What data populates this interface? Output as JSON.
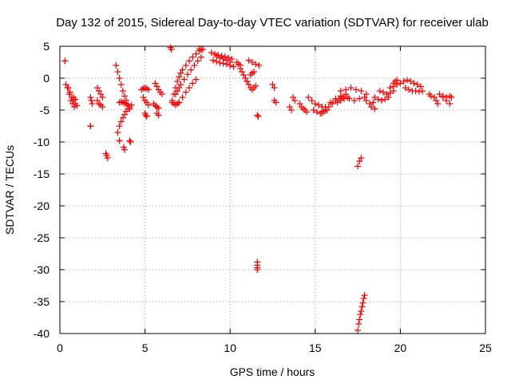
{
  "chart_data": {
    "type": "scatter",
    "title": "Day 132 of 2015, Sidereal Day-to-day VTEC variation (SDTVAR) for receiver ulab",
    "xlabel": "GPS time / hours",
    "ylabel": "SDTVAR / TECUs",
    "xlim": [
      0,
      25
    ],
    "ylim": [
      -40,
      5
    ],
    "x_ticks": [
      0,
      5,
      10,
      15,
      20,
      25
    ],
    "y_ticks": [
      5,
      0,
      -5,
      -10,
      -15,
      -20,
      -25,
      -30,
      -35,
      -40
    ],
    "x_tick_labels": [
      "0",
      "5",
      "10",
      "15",
      "20",
      "25"
    ],
    "y_tick_labels": [
      "5",
      "0",
      "-5",
      "-10",
      "-15",
      "-20",
      "-25",
      "-30",
      "-35",
      "-40"
    ],
    "grid": true,
    "marker": "+",
    "marker_color": "#ff0000",
    "series": [
      {
        "name": "SDTVAR",
        "segments": [
          {
            "x": [
              0.3,
              0.3
            ],
            "y": [
              2.7,
              2.7
            ]
          },
          {
            "x": [
              0.35,
              0.5,
              0.6,
              0.7,
              0.8,
              0.9,
              1.0
            ],
            "y": [
              -1.0,
              -1.5,
              -2.2,
              -3.0,
              -3.5,
              -4.0,
              -4.3
            ]
          },
          {
            "x": [
              0.45,
              0.55,
              0.65,
              0.75,
              0.85
            ],
            "y": [
              -1.5,
              -2.5,
              -3.5,
              -4.0,
              -4.5
            ]
          },
          {
            "x": [
              0.8,
              0.9
            ],
            "y": [
              -3.0,
              -3.3
            ]
          },
          {
            "x": [
              1.8,
              1.8
            ],
            "y": [
              -7.5,
              -7.5
            ]
          },
          {
            "x": [
              1.8,
              1.85,
              1.9
            ],
            "y": [
              -3.0,
              -3.5,
              -4.0
            ]
          },
          {
            "x": [
              2.2,
              2.3,
              2.4,
              2.5
            ],
            "y": [
              -1.5,
              -2.0,
              -2.5,
              -3.0
            ]
          },
          {
            "x": [
              2.2,
              2.3,
              2.4,
              2.5
            ],
            "y": [
              -3.5,
              -4.0,
              -4.2,
              -4.5
            ]
          },
          {
            "x": [
              2.7,
              2.75,
              2.8
            ],
            "y": [
              -11.8,
              -12.1,
              -12.5
            ]
          },
          {
            "x": [
              3.3,
              3.4,
              3.5,
              3.6,
              3.7,
              3.8,
              3.9,
              4.0,
              4.1
            ],
            "y": [
              2.0,
              1.0,
              0.0,
              -1.0,
              -2.0,
              -2.8,
              -3.5,
              -4.2,
              -4.8
            ]
          },
          {
            "x": [
              3.4,
              3.5,
              3.6,
              3.7,
              3.8,
              3.9,
              4.0,
              4.1,
              4.2
            ],
            "y": [
              -8.5,
              -7.5,
              -6.8,
              -6.2,
              -5.7,
              -5.2,
              -4.8,
              -4.5,
              -4.2
            ]
          },
          {
            "x": [
              3.5,
              3.6,
              3.7,
              3.8,
              3.9
            ],
            "y": [
              -3.8,
              -3.7,
              -3.8,
              -3.9,
              -4.0
            ]
          },
          {
            "x": [
              3.5,
              3.5
            ],
            "y": [
              -9.8,
              -9.8
            ]
          },
          {
            "x": [
              3.75,
              3.8
            ],
            "y": [
              -10.8,
              -11.2
            ]
          },
          {
            "x": [
              4.1,
              4.15
            ],
            "y": [
              -9.8,
              -10.0
            ]
          },
          {
            "x": [
              4.8,
              4.9,
              5.0,
              5.1,
              5.2
            ],
            "y": [
              -1.8,
              -1.6,
              -1.5,
              -1.6,
              -1.8
            ]
          },
          {
            "x": [
              4.9,
              5.0,
              5.1,
              5.2
            ],
            "y": [
              -3.0,
              -3.5,
              -3.8,
              -4.2
            ]
          },
          {
            "x": [
              5.0,
              5.05,
              5.1
            ],
            "y": [
              -5.5,
              -5.8,
              -6.0
            ]
          },
          {
            "x": [
              5.6,
              5.7,
              5.8,
              5.9,
              6.0
            ],
            "y": [
              -0.8,
              -1.3,
              -1.8,
              -2.2,
              -2.5
            ]
          },
          {
            "x": [
              5.5,
              5.6,
              5.7,
              5.8
            ],
            "y": [
              -4.0,
              -4.3,
              -4.5,
              -4.7
            ]
          },
          {
            "x": [
              5.7,
              5.8
            ],
            "y": [
              -5.5,
              -5.8
            ]
          },
          {
            "x": [
              6.5,
              6.55
            ],
            "y": [
              4.8,
              4.5
            ]
          },
          {
            "x": [
              6.6,
              6.7,
              6.8,
              6.9,
              7.0,
              7.1,
              7.2,
              7.4,
              7.6,
              7.8,
              8.0,
              8.2
            ],
            "y": [
              -3.5,
              -2.5,
              -1.5,
              -0.5,
              0.2,
              0.8,
              1.3,
              2.0,
              2.7,
              3.3,
              3.8,
              4.3
            ]
          },
          {
            "x": [
              6.8,
              6.9,
              7.0,
              7.1,
              7.3,
              7.5,
              7.7,
              7.9,
              8.1,
              8.3
            ],
            "y": [
              -2.5,
              -2.0,
              -1.5,
              -1.0,
              -0.2,
              0.6,
              1.3,
              2.0,
              2.7,
              3.3
            ]
          },
          {
            "x": [
              6.6,
              6.7,
              6.8,
              6.9,
              7.0
            ],
            "y": [
              -3.8,
              -4.0,
              -4.2,
              -4.0,
              -3.8
            ]
          },
          {
            "x": [
              7.0,
              7.2,
              7.4,
              7.6,
              7.8,
              8.0
            ],
            "y": [
              -3.8,
              -3.0,
              -2.2,
              -1.5,
              -0.8,
              -0.2
            ]
          },
          {
            "x": [
              8.2,
              8.3,
              8.4
            ],
            "y": [
              4.6,
              4.5,
              4.5
            ]
          },
          {
            "x": [
              8.9,
              9.1,
              9.3,
              9.5,
              9.7,
              9.9,
              10.1
            ],
            "y": [
              4.0,
              3.8,
              3.6,
              3.5,
              3.4,
              3.2,
              3.0
            ]
          },
          {
            "x": [
              9.0,
              9.2,
              9.4,
              9.6,
              9.8,
              10.0,
              10.2
            ],
            "y": [
              2.8,
              2.6,
              2.4,
              2.3,
              2.2,
              2.0,
              1.8
            ]
          },
          {
            "x": [
              9.2,
              9.4,
              9.6,
              9.8,
              10.0
            ],
            "y": [
              3.5,
              3.2,
              3.0,
              2.8,
              2.5
            ]
          },
          {
            "x": [
              10.4,
              10.5,
              10.6
            ],
            "y": [
              2.5,
              2.2,
              2.0
            ]
          },
          {
            "x": [
              10.6,
              10.7,
              10.8,
              10.9,
              11.0
            ],
            "y": [
              1.5,
              1.0,
              0.5,
              0.0,
              -0.5
            ]
          },
          {
            "x": [
              11.0,
              11.1,
              11.2,
              11.3,
              11.4,
              11.5
            ],
            "y": [
              -0.5,
              -1.0,
              -1.5,
              -1.8,
              -1.5,
              -1.2
            ]
          },
          {
            "x": [
              11.1,
              11.3,
              11.5,
              11.7
            ],
            "y": [
              2.8,
              2.5,
              2.2,
              2.0
            ]
          },
          {
            "x": [
              11.2,
              11.3,
              11.4
            ],
            "y": [
              0.5,
              0.8,
              1.0
            ]
          },
          {
            "x": [
              11.6,
              11.65
            ],
            "y": [
              -5.8,
              -6.0
            ]
          },
          {
            "x": [
              11.6,
              11.6,
              11.6,
              11.6
            ],
            "y": [
              -28.8,
              -29.3,
              -29.7,
              -30.0
            ]
          },
          {
            "x": [
              12.5,
              12.6
            ],
            "y": [
              -1.0,
              -1.5
            ]
          },
          {
            "x": [
              12.6,
              12.7
            ],
            "y": [
              -3.5,
              -3.8
            ]
          },
          {
            "x": [
              13.5,
              13.6
            ],
            "y": [
              -4.5,
              -5.0
            ]
          },
          {
            "x": [
              13.7,
              13.8
            ],
            "y": [
              -3.0,
              -3.5
            ]
          },
          {
            "x": [
              14.1,
              14.2,
              14.3,
              14.4,
              14.5
            ],
            "y": [
              -4.0,
              -4.5,
              -4.8,
              -5.0,
              -5.3
            ]
          },
          {
            "x": [
              14.6,
              14.8,
              15.0,
              15.2,
              15.4
            ],
            "y": [
              -3.0,
              -3.5,
              -4.0,
              -4.2,
              -4.5
            ]
          },
          {
            "x": [
              14.9,
              15.1,
              15.3,
              15.5,
              15.7
            ],
            "y": [
              -5.0,
              -5.3,
              -5.5,
              -5.2,
              -5.0
            ]
          },
          {
            "x": [
              15.4,
              15.6,
              15.8,
              16.0,
              16.2,
              16.4,
              16.6
            ],
            "y": [
              -5.5,
              -5.0,
              -4.5,
              -4.0,
              -3.5,
              -3.2,
              -3.0
            ]
          },
          {
            "x": [
              15.6,
              15.9,
              16.2,
              16.5,
              16.8
            ],
            "y": [
              -4.5,
              -3.8,
              -3.2,
              -2.8,
              -2.5
            ]
          },
          {
            "x": [
              16.5,
              16.8,
              17.1,
              17.4,
              17.7,
              18.0
            ],
            "y": [
              -2.0,
              -1.8,
              -1.5,
              -1.8,
              -2.0,
              -2.5
            ]
          },
          {
            "x": [
              16.7,
              17.0,
              17.3,
              17.6,
              17.9
            ],
            "y": [
              -3.0,
              -3.2,
              -3.5,
              -3.2,
              -3.0
            ]
          },
          {
            "x": [
              16.3,
              16.5,
              16.7,
              16.9
            ],
            "y": [
              -3.8,
              -3.5,
              -3.2,
              -3.0
            ]
          },
          {
            "x": [
              17.5,
              17.6,
              17.7
            ],
            "y": [
              -13.8,
              -13.0,
              -12.5
            ]
          },
          {
            "x": [
              17.5,
              17.55,
              17.6,
              17.65,
              17.7,
              17.75,
              17.8,
              17.85,
              17.9
            ],
            "y": [
              -39.5,
              -38.5,
              -37.8,
              -37.0,
              -36.5,
              -35.8,
              -35.2,
              -34.5,
              -34.0
            ]
          },
          {
            "x": [
              18.0,
              18.2,
              18.4
            ],
            "y": [
              -3.5,
              -4.0,
              -3.8
            ]
          },
          {
            "x": [
              18.3,
              18.5
            ],
            "y": [
              -4.5,
              -4.8
            ]
          },
          {
            "x": [
              18.5,
              18.7,
              18.9,
              19.1,
              19.3
            ],
            "y": [
              -3.0,
              -3.3,
              -3.5,
              -3.3,
              -3.0
            ]
          },
          {
            "x": [
              18.8,
              19.0,
              19.2,
              19.4,
              19.6
            ],
            "y": [
              -2.0,
              -2.2,
              -2.5,
              -2.3,
              -2.0
            ]
          },
          {
            "x": [
              19.4,
              19.6,
              19.8,
              20.0
            ],
            "y": [
              -1.5,
              -1.3,
              -1.0,
              -0.8
            ]
          },
          {
            "x": [
              19.6,
              19.7,
              19.8
            ],
            "y": [
              -0.8,
              -0.5,
              -0.3
            ]
          },
          {
            "x": [
              20.2,
              20.4,
              20.6,
              20.8,
              21.0,
              21.2
            ],
            "y": [
              -0.5,
              -0.3,
              -0.5,
              -0.8,
              -1.0,
              -1.3
            ]
          },
          {
            "x": [
              20.3,
              20.5,
              20.7,
              20.9,
              21.1,
              21.3
            ],
            "y": [
              -1.5,
              -1.8,
              -2.0,
              -2.0,
              -2.1,
              -2.0
            ]
          },
          {
            "x": [
              21.7,
              21.8
            ],
            "y": [
              -2.5,
              -2.8
            ]
          },
          {
            "x": [
              22.0,
              22.1,
              22.2
            ],
            "y": [
              -3.0,
              -3.5,
              -4.0
            ]
          },
          {
            "x": [
              22.3,
              22.5,
              22.7,
              22.9
            ],
            "y": [
              -2.5,
              -3.0,
              -3.5,
              -4.0
            ]
          },
          {
            "x": [
              22.5,
              22.7,
              22.9
            ],
            "y": [
              -2.8,
              -3.0,
              -2.8
            ]
          },
          {
            "x": [
              23.0
            ],
            "y": [
              -3.0
            ]
          }
        ]
      }
    ]
  }
}
